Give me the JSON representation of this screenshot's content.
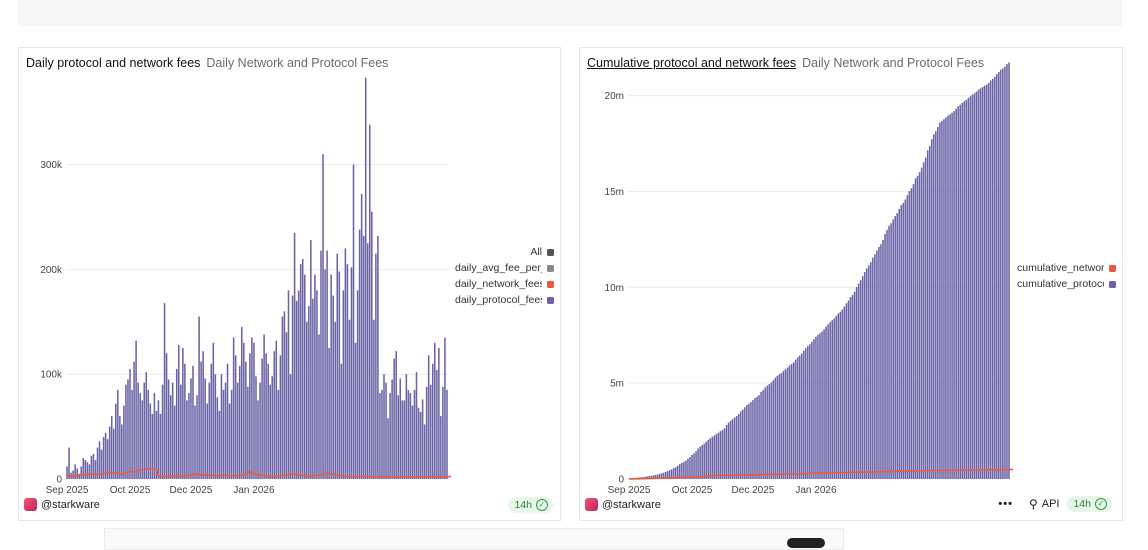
{
  "colors": {
    "protocol": "#6a63a6",
    "network": "#ea5b3c",
    "avg": "#8a8a8a",
    "all": "#555555",
    "grid": "#ececec"
  },
  "panels": [
    {
      "title": "Daily protocol and network fees",
      "subtitle": "Daily Network and Protocol Fees",
      "author": "@starkware",
      "freshness": "14h",
      "legend": [
        {
          "label": "All",
          "color": "#555555"
        },
        {
          "label": "daily_avg_fee_per_",
          "color": "#8a8a8a"
        },
        {
          "label": "daily_network_fees",
          "color": "#ea5b3c"
        },
        {
          "label": "daily_protocol_fees",
          "color": "#6a63a6"
        }
      ]
    },
    {
      "title": "Cumulative protocol and network fees",
      "subtitle": "Daily Network and Protocol Fees",
      "author": "@starkware",
      "freshness": "14h",
      "more_label": "•••",
      "api_label": "API",
      "legend": [
        {
          "label": "cumulative_network_fees",
          "color": "#ea5b3c"
        },
        {
          "label": "cumulative_protocol_fees",
          "color": "#6a63a6"
        }
      ]
    }
  ],
  "chart_data": [
    {
      "type": "bar",
      "title": "Daily protocol and network fees",
      "xlabel": "",
      "ylabel": "",
      "ylim": [
        0,
        375000
      ],
      "yticks": [
        0,
        100000,
        200000,
        300000
      ],
      "ytick_labels": [
        "0",
        "100k",
        "200k",
        "300k"
      ],
      "xtick_labels": [
        "Sep 2025",
        "Oct 2025",
        "Dec 2025",
        "Jan 2026"
      ],
      "xtick_days": [
        0,
        31,
        61,
        92
      ],
      "start": "2025-09-01",
      "series": [
        {
          "name": "daily_protocol_fees",
          "kind": "bar",
          "values": [
            12000,
            30000,
            6000,
            8000,
            14000,
            10000,
            5000,
            12000,
            20000,
            18000,
            16000,
            14000,
            22000,
            24000,
            18000,
            30000,
            36000,
            28000,
            40000,
            44000,
            38000,
            50000,
            60000,
            48000,
            72000,
            85000,
            60000,
            52000,
            70000,
            90000,
            95000,
            105000,
            85000,
            112000,
            132000,
            92000,
            82000,
            75000,
            92000,
            102000,
            85000,
            72000,
            62000,
            82000,
            65000,
            75000,
            62000,
            90000,
            168000,
            120000,
            95000,
            80000,
            92000,
            70000,
            105000,
            128000,
            90000,
            125000,
            110000,
            75000,
            82000,
            96000,
            108000,
            70000,
            80000,
            155000,
            112000,
            122000,
            96000,
            72000,
            92000,
            110000,
            130000,
            100000,
            78000,
            65000,
            100000,
            85000,
            92000,
            110000,
            72000,
            85000,
            135000,
            118000,
            92000,
            108000,
            145000,
            130000,
            112000,
            88000,
            120000,
            135000,
            130000,
            98000,
            75000,
            92000,
            115000,
            138000,
            120000,
            110000,
            90000,
            98000,
            122000,
            132000,
            85000,
            118000,
            155000,
            160000,
            140000,
            180000,
            100000,
            175000,
            235000,
            170000,
            180000,
            205000,
            210000,
            195000,
            150000,
            165000,
            228000,
            172000,
            195000,
            180000,
            138000,
            218000,
            310000,
            200000,
            218000,
            125000,
            195000,
            175000,
            150000,
            215000,
            198000,
            110000,
            180000,
            220000,
            205000,
            152000,
            202000,
            300000,
            130000,
            180000,
            238000,
            272000,
            232000,
            383000,
            225000,
            338000,
            255000,
            152000,
            215000,
            232000,
            82000,
            85000,
            100000,
            92000,
            58000,
            82000,
            95000,
            115000,
            122000,
            80000,
            96000,
            75000,
            75000,
            100000,
            85000,
            82000,
            70000,
            85000,
            102000,
            68000,
            64000,
            76000,
            52000,
            88000,
            118000,
            90000,
            110000,
            130000,
            104000,
            125000,
            60000,
            88000,
            135000,
            85000
          ]
        },
        {
          "name": "daily_network_fees",
          "kind": "line",
          "values": [
            2000,
            3500,
            2500,
            2800,
            3000,
            3200,
            3600,
            4000,
            4200,
            4500,
            4300,
            4600,
            4800,
            4500,
            4200,
            4000,
            4400,
            4800,
            5200,
            5600,
            6000,
            6500,
            5800,
            5200,
            6200,
            5500,
            5000,
            4800,
            5200,
            6000,
            6800,
            7500,
            7000,
            6500,
            7200,
            8000,
            8500,
            9000,
            9500,
            9200,
            9800,
            10000,
            9600,
            9800,
            9000,
            3000,
            2500,
            2400,
            2600,
            2500,
            2700,
            2600,
            2800,
            2900,
            2700,
            2600,
            2800,
            2700,
            2600,
            2900,
            3200,
            3500,
            4200,
            5000,
            4500,
            4000,
            3600,
            3400,
            3600,
            3800,
            3700,
            3400,
            3200,
            3000,
            2800,
            3000,
            3200,
            3400,
            3600,
            3500,
            3200,
            3100,
            3000,
            2900,
            2800,
            3100,
            3500,
            4000,
            5000,
            6000,
            7000,
            6500,
            5500,
            4500,
            4000,
            3600,
            3400,
            3200,
            3000,
            2800,
            2700,
            2600,
            2500,
            2700,
            2800,
            3000,
            3200,
            3500,
            3800,
            4200,
            4500,
            4800,
            5000,
            4600,
            4200,
            3800,
            3400,
            3000,
            2800,
            2700,
            2600,
            2800,
            3000,
            3200,
            3500,
            4000,
            4800,
            5500,
            6000,
            5400,
            4800,
            4200,
            3800,
            3500,
            3200,
            3000,
            2800,
            2600,
            2500,
            2400,
            2300,
            2200,
            2300,
            2400,
            2500,
            2600,
            2700,
            2600,
            2500,
            2400,
            2300,
            2200,
            2100,
            2000,
            2100,
            2200,
            2300,
            2400,
            2300,
            2200,
            2100,
            2000,
            2000,
            2000,
            2100,
            2200,
            2300,
            2200,
            2100,
            2000,
            2000,
            2100,
            2200,
            2300,
            2200,
            2100,
            2000,
            2100,
            2200,
            2300,
            2400,
            2300,
            2200,
            2100,
            2000,
            2000,
            2100,
            2200,
            2300,
            2200
          ]
        }
      ]
    },
    {
      "type": "bar",
      "title": "Cumulative protocol and network fees",
      "xlabel": "",
      "ylabel": "",
      "ylim": [
        0,
        20500000
      ],
      "yticks": [
        0,
        5000000,
        10000000,
        15000000,
        20000000
      ],
      "ytick_labels": [
        "0",
        "5m",
        "10m",
        "15m",
        "20m"
      ],
      "xtick_labels": [
        "Sep 2025",
        "Oct 2025",
        "Dec 2025",
        "Jan 2026"
      ],
      "xtick_days": [
        0,
        31,
        61,
        92
      ],
      "start": "2025-09-01",
      "series": [
        {
          "name": "cumulative_protocol_fees",
          "kind": "bar",
          "cumulative_of": 0
        },
        {
          "name": "cumulative_network_fees",
          "kind": "line",
          "cumulative_of": 1
        }
      ]
    }
  ]
}
